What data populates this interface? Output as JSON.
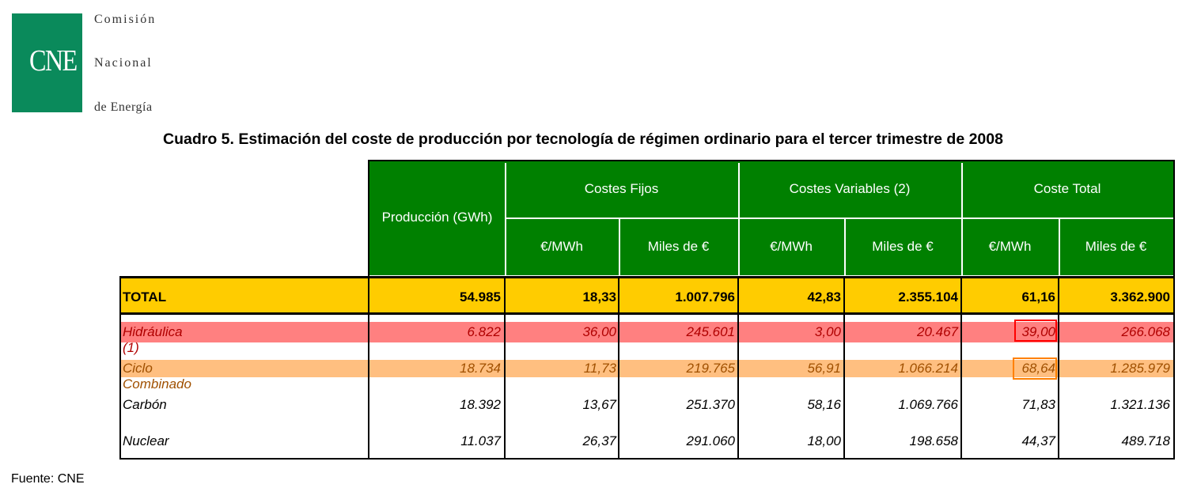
{
  "logo": {
    "abbr": "CNE",
    "line1": "Comisión",
    "line2": "Nacional",
    "line3": "de Energía"
  },
  "title": "Cuadro 5. Estimación del coste de producción por tecnología de régimen ordinario para el tercer trimestre de 2008",
  "table": {
    "header": {
      "production": "Producción (GWh)",
      "groups": [
        "Costes Fijos",
        "Costes Variables (2)",
        "Coste Total"
      ],
      "sub": [
        "€/MWh",
        "Miles de €",
        "€/MWh",
        "Miles de €",
        "€/MWh",
        "Miles de €"
      ]
    },
    "rows": [
      {
        "label": "TOTAL",
        "values": [
          "54.985",
          "18,33",
          "1.007.796",
          "42,83",
          "2.355.104",
          "61,16",
          "3.362.900"
        ]
      },
      {
        "label": "Hidráulica (1)",
        "values": [
          "6.822",
          "36,00",
          "245.601",
          "3,00",
          "20.467",
          "39,00",
          "266.068"
        ]
      },
      {
        "label": "Ciclo Combinado",
        "values": [
          "18.734",
          "11,73",
          "219.765",
          "56,91",
          "1.066.214",
          "68,64",
          "1.285.979"
        ]
      },
      {
        "label": "Carbón",
        "values": [
          "18.392",
          "13,67",
          "251.370",
          "58,16",
          "1.069.766",
          "71,83",
          "1.321.136"
        ]
      },
      {
        "label": "Nuclear",
        "values": [
          "11.037",
          "26,37",
          "291.060",
          "18,00",
          "198.658",
          "44,37",
          "489.718"
        ]
      }
    ]
  },
  "colors": {
    "header_green": "#008000",
    "total_yellow": "#ffcc00",
    "hidraulica_red": "#ff8080",
    "ciclo_orange": "#ffbf80",
    "box_red": "#ff0000",
    "box_orange": "#ff8000"
  },
  "source": "Fuente: CNE"
}
